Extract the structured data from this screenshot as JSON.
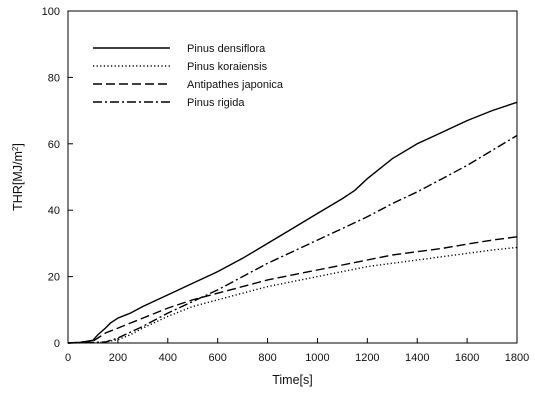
{
  "chart_data": {
    "type": "line",
    "xlabel": "Time[s]",
    "ylabel_base": "THR[MJ/m",
    "ylabel_sup": "2",
    "ylabel_close": "]",
    "xlim": [
      0,
      1800
    ],
    "ylim": [
      0,
      100
    ],
    "xticks": [
      0,
      200,
      400,
      600,
      800,
      1000,
      1200,
      1400,
      1600,
      1800
    ],
    "yticks": [
      0,
      20,
      40,
      60,
      80,
      100
    ],
    "grid": false,
    "legend_position": "top-left",
    "series": [
      {
        "name": "Pinus densiflora",
        "style": "solid",
        "x": [
          0,
          50,
          100,
          120,
          150,
          170,
          200,
          250,
          300,
          400,
          500,
          600,
          700,
          800,
          900,
          1000,
          1100,
          1150,
          1200,
          1250,
          1300,
          1400,
          1500,
          1600,
          1700,
          1800
        ],
        "y": [
          0,
          0.2,
          0.8,
          2.5,
          4.5,
          6.0,
          7.5,
          9.0,
          11.0,
          14.5,
          18.0,
          21.5,
          25.5,
          30.0,
          34.5,
          39.0,
          43.5,
          46.0,
          49.5,
          52.5,
          55.5,
          60.0,
          63.5,
          67.0,
          70.0,
          72.5
        ]
      },
      {
        "name": "Pinus koraiensis",
        "style": "dotted",
        "x": [
          0,
          100,
          150,
          200,
          250,
          300,
          400,
          500,
          600,
          700,
          800,
          900,
          1000,
          1100,
          1200,
          1300,
          1400,
          1500,
          1600,
          1700,
          1800
        ],
        "y": [
          0,
          0.1,
          0.3,
          1.0,
          2.5,
          4.5,
          8.0,
          11.0,
          13.0,
          15.0,
          17.0,
          18.5,
          20.0,
          21.5,
          23.0,
          24.0,
          25.0,
          26.0,
          27.0,
          28.0,
          28.8
        ]
      },
      {
        "name": "Antipathes japonica",
        "style": "dashed",
        "x": [
          0,
          100,
          120,
          150,
          200,
          300,
          400,
          500,
          600,
          700,
          800,
          900,
          1000,
          1100,
          1200,
          1300,
          1400,
          1500,
          1600,
          1700,
          1800
        ],
        "y": [
          0,
          0.5,
          1.5,
          3.0,
          4.5,
          7.5,
          10.5,
          13.0,
          15.0,
          17.0,
          19.0,
          20.5,
          22.0,
          23.5,
          25.0,
          26.5,
          27.5,
          28.5,
          29.8,
          31.0,
          32.0
        ]
      },
      {
        "name": "Pinus rigida",
        "style": "dashdot",
        "x": [
          0,
          150,
          200,
          300,
          400,
          500,
          600,
          700,
          800,
          900,
          1000,
          1100,
          1200,
          1300,
          1400,
          1500,
          1600,
          1700,
          1800
        ],
        "y": [
          0,
          0.3,
          1.5,
          5.0,
          9.0,
          12.5,
          16.0,
          20.0,
          24.0,
          27.5,
          31.0,
          34.5,
          38.0,
          42.0,
          45.5,
          49.5,
          53.5,
          58.0,
          62.5
        ]
      }
    ]
  }
}
